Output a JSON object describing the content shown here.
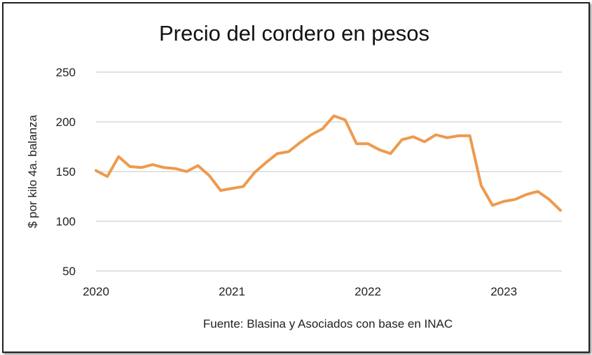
{
  "chart_data": {
    "type": "line",
    "title": "Precio del cordero en pesos",
    "xlabel": "",
    "ylabel": "$ por kilo 4a. balanza",
    "source": "Fuente: Blasina y Asociados con base en INAC",
    "ylim": [
      50,
      250
    ],
    "yticks": [
      50,
      100,
      150,
      200,
      250
    ],
    "xticks": [
      "2020",
      "2021",
      "2022",
      "2023"
    ],
    "x_start": "2020-01",
    "x_step": "month",
    "grid": true,
    "series": [
      {
        "name": "Precio del cordero",
        "color": "#ED9A4E",
        "values": [
          151,
          145,
          165,
          155,
          154,
          157,
          154,
          153,
          150,
          156,
          146,
          131,
          133,
          135,
          149,
          159,
          168,
          170,
          179,
          187,
          193,
          206,
          202,
          178,
          178,
          172,
          168,
          182,
          185,
          180,
          187,
          184,
          186,
          186,
          136,
          116,
          120,
          122,
          127,
          130,
          122,
          111
        ]
      }
    ]
  }
}
